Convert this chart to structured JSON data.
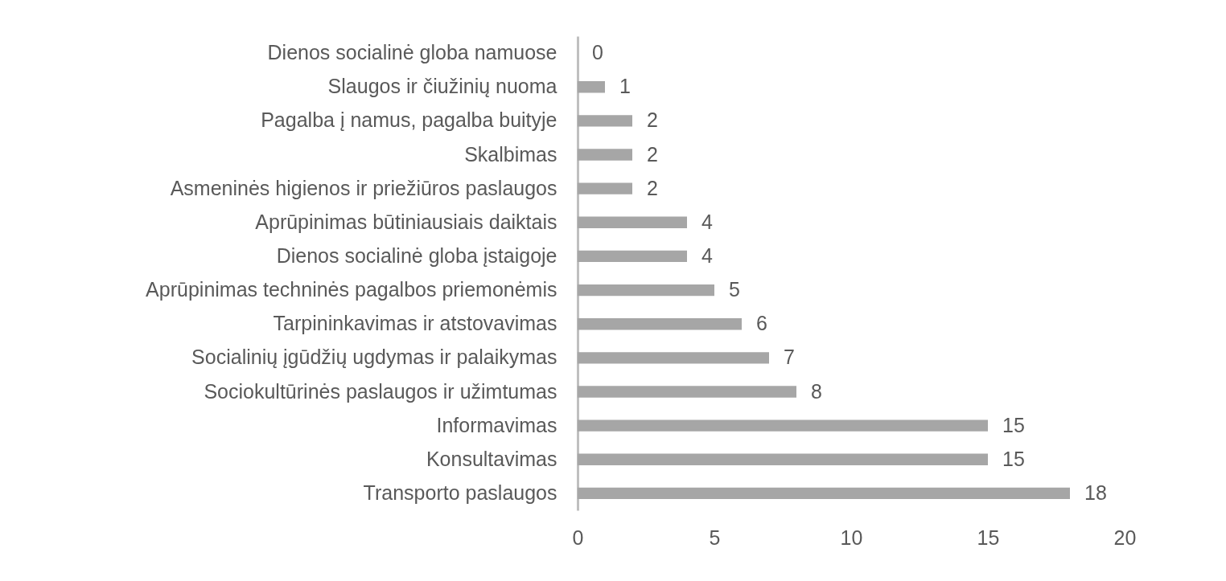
{
  "chart_data": {
    "type": "bar",
    "orientation": "horizontal",
    "categories": [
      "Dienos socialinė globa namuose",
      "Slaugos ir čiužinių nuoma",
      "Pagalba į namus, pagalba buityje",
      "Skalbimas",
      "Asmeninės higienos ir priežiūros paslaugos",
      "Aprūpinimas būtiniausiais daiktais",
      "Dienos socialinė globa įstaigoje",
      "Aprūpinimas techninės pagalbos priemonėmis",
      "Tarpininkavimas ir atstovavimas",
      "Socialinių įgūdžių ugdymas ir palaikymas",
      "Sociokultūrinės paslaugos ir užimtumas",
      "Informavimas",
      "Konsultavimas",
      "Transporto paslaugos"
    ],
    "values": [
      0,
      1,
      2,
      2,
      2,
      4,
      4,
      5,
      6,
      7,
      8,
      15,
      15,
      18
    ],
    "color": "#a6a6a6",
    "xlim": [
      0,
      20
    ],
    "xticks": [
      0,
      5,
      10,
      15,
      20
    ],
    "data_labels": true
  }
}
